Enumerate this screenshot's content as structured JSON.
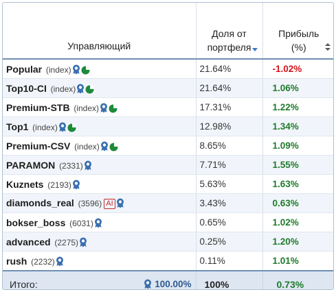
{
  "header": {
    "manager": "Управляющий",
    "share_line1": "Доля от",
    "share_line2": "портфеля",
    "profit_line1": "Прибыль",
    "profit_line2": "(%)"
  },
  "rows": [
    {
      "name": "Popular",
      "id": "(index)",
      "ai": false,
      "pie": true,
      "share": "21.64%",
      "profit": "-1.02%",
      "sign": "neg"
    },
    {
      "name": "Top10-CI",
      "id": "(index)",
      "ai": false,
      "pie": true,
      "share": "21.64%",
      "profit": "1.06%",
      "sign": "pos"
    },
    {
      "name": "Premium-STB",
      "id": "(index)",
      "ai": false,
      "pie": true,
      "share": "17.31%",
      "profit": "1.22%",
      "sign": "pos"
    },
    {
      "name": "Top1",
      "id": "(index)",
      "ai": false,
      "pie": true,
      "share": "12.98%",
      "profit": "1.34%",
      "sign": "pos"
    },
    {
      "name": "Premium-CSV",
      "id": "(index)",
      "ai": false,
      "pie": true,
      "share": "8.65%",
      "profit": "1.09%",
      "sign": "pos"
    },
    {
      "name": "PARAMON",
      "id": "(2331)",
      "ai": false,
      "pie": false,
      "share": "7.71%",
      "profit": "1.55%",
      "sign": "pos"
    },
    {
      "name": "Kuznets",
      "id": "(2193)",
      "ai": false,
      "pie": false,
      "share": "5.63%",
      "profit": "1.63%",
      "sign": "pos"
    },
    {
      "name": "diamonds_real",
      "id": "(3596)",
      "ai": true,
      "pie": false,
      "share": "3.43%",
      "profit": "0.63%",
      "sign": "pos"
    },
    {
      "name": "bokser_boss",
      "id": "(6031)",
      "ai": false,
      "pie": false,
      "share": "0.65%",
      "profit": "1.02%",
      "sign": "pos"
    },
    {
      "name": "advanced",
      "id": "(2275)",
      "ai": false,
      "pie": false,
      "share": "0.25%",
      "profit": "1.20%",
      "sign": "pos"
    },
    {
      "name": "rush",
      "id": "(2232)",
      "ai": false,
      "pie": false,
      "share": "0.11%",
      "profit": "1.01%",
      "sign": "pos"
    }
  ],
  "ai_label": "AI",
  "footer": {
    "label": "Итого:",
    "verified_pct": "100.00%",
    "share": "100%",
    "profit": "0.73%"
  },
  "colors": {
    "positive": "#1f7a2a",
    "negative": "#d4141a",
    "badge_blue": "#3a6fb0",
    "pie_green": "#1e8a3a"
  },
  "icons": [
    "award-badge-icon",
    "pie-chart-icon",
    "sort-desc-icon",
    "sort-both-icon"
  ]
}
